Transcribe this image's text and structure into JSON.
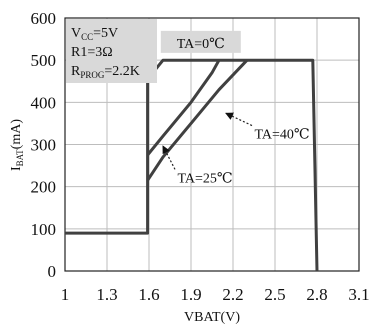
{
  "chart_data": {
    "type": "line",
    "xlabel": "VBAT(V)",
    "ylabel_main": "I",
    "ylabel_sub": "BAT",
    "ylabel_unit": "(mA)",
    "xlim": [
      1,
      3.1
    ],
    "ylim": [
      0,
      600
    ],
    "xticks": [
      1,
      1.3,
      1.6,
      1.9,
      2.2,
      2.5,
      2.8,
      3.1
    ],
    "xtick_labels": [
      "1",
      "1.3",
      "1.6",
      "1.9",
      "2.2",
      "2.5",
      "2.8",
      "3.1"
    ],
    "yticks": [
      0,
      100,
      200,
      300,
      400,
      500,
      600
    ],
    "ytick_labels": [
      "0",
      "100",
      "200",
      "300",
      "400",
      "500",
      "600"
    ],
    "grid": true,
    "series": [
      {
        "name": "TA=0℃",
        "x": [
          1.0,
          1.59,
          1.59,
          1.7,
          1.7,
          2.77,
          2.8
        ],
        "y": [
          90,
          90,
          455,
          500,
          500,
          500,
          0
        ]
      },
      {
        "name": "TA=25℃",
        "x": [
          1.59,
          1.7,
          1.9,
          2.1,
          2.3
        ],
        "y": [
          215,
          270,
          350,
          430,
          500
        ]
      },
      {
        "name": "TA=40℃",
        "x": [
          1.59,
          1.7,
          1.9,
          2.05,
          2.1
        ],
        "y": [
          275,
          320,
          400,
          470,
          500
        ]
      }
    ],
    "legend_box": {
      "vcc_prefix": "V",
      "vcc_sub": "CC",
      "vcc_value": "=5V",
      "r1": "R1=3Ω",
      "rprog_prefix": "R",
      "rprog_sub": "PROG",
      "rprog_value": "=2.2K"
    },
    "annotations": [
      {
        "id": "ta0",
        "text": "TA=0℃",
        "boxed": true,
        "anchor_x": 1.97,
        "anchor_y": 541
      },
      {
        "id": "ta40",
        "text": "TA=40℃",
        "boxed": false,
        "anchor_x": 2.55,
        "anchor_y": 326,
        "arrow_to_x": 2.15,
        "arrow_to_y": 374
      },
      {
        "id": "ta25",
        "text": "TA=25℃",
        "boxed": false,
        "anchor_x": 2.0,
        "anchor_y": 222,
        "arrow_to_x": 1.7,
        "arrow_to_y": 296
      }
    ],
    "colors": {
      "curve": "#404040",
      "grid": "#bdbdbd",
      "box_fill": "#d9d9d9"
    }
  }
}
